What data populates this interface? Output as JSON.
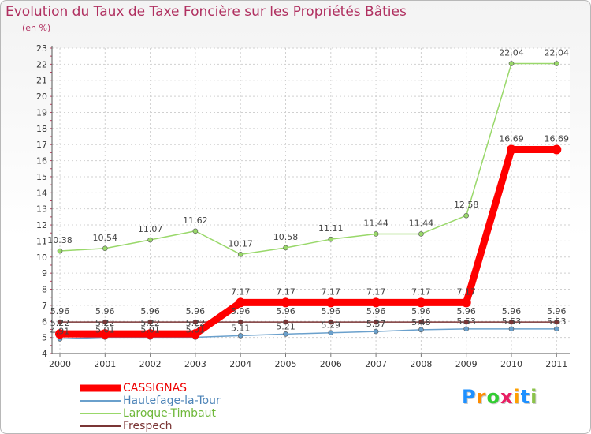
{
  "chart_data": {
    "type": "line",
    "title": "Evolution du Taux de Taxe Foncière sur les Propriétés Bâties",
    "unit_label": "(en %)",
    "categories": [
      "2000",
      "2001",
      "2002",
      "2003",
      "2004",
      "2005",
      "2006",
      "2007",
      "2008",
      "2009",
      "2010",
      "2011"
    ],
    "ylim": [
      4,
      23
    ],
    "yticks": [
      4,
      5,
      6,
      7,
      8,
      9,
      10,
      11,
      12,
      13,
      14,
      15,
      16,
      17,
      18,
      19,
      20,
      21,
      22,
      23
    ],
    "grid": true,
    "series": [
      {
        "name": "CASSIGNAS",
        "color": "#ff0000",
        "values": [
          5.22,
          5.22,
          5.22,
          5.22,
          7.17,
          7.17,
          7.17,
          7.17,
          7.17,
          7.17,
          16.69,
          16.69
        ],
        "labels": [
          "5.22",
          "5.22",
          "5.22",
          "5.22",
          "7.17",
          "7.17",
          "7.17",
          "7.17",
          "7.17",
          "7.17",
          "16.69",
          "16.69"
        ]
      },
      {
        "name": "Hautefage-la-Tour",
        "color": "#6aa0cc",
        "values": [
          4.91,
          5.01,
          5.01,
          5.01,
          5.11,
          5.21,
          5.29,
          5.37,
          5.48,
          5.53,
          5.53,
          5.53
        ],
        "labels": [
          "4.91",
          "5.01",
          "5.01",
          "5.01",
          "5.11",
          "5.21",
          "5.29",
          "5.37",
          "5.48",
          "5.53",
          "5.53",
          "5.53"
        ]
      },
      {
        "name": "Laroque-Timbaut",
        "color": "#99d86a",
        "values": [
          10.38,
          10.54,
          11.07,
          11.62,
          10.17,
          10.58,
          11.11,
          11.44,
          11.44,
          12.58,
          22.04,
          22.04
        ],
        "labels": [
          "10.38",
          "10.54",
          "11.07",
          "11.62",
          "10.17",
          "10.58",
          "11.11",
          "11.44",
          "11.44",
          "12.58",
          "22.04",
          "22.04"
        ]
      },
      {
        "name": "Frespech",
        "color": "#7a3535",
        "values": [
          5.96,
          5.96,
          5.96,
          5.96,
          5.96,
          5.96,
          5.96,
          5.96,
          5.96,
          5.96,
          5.96,
          5.96
        ],
        "labels": [
          "5.96",
          "5.96",
          "5.96",
          "5.96",
          "5.96",
          "5.96",
          "5.96",
          "5.96",
          "5.96",
          "5.96",
          "5.96",
          "5.96"
        ]
      }
    ],
    "legend_position": "bottom-left"
  },
  "logo": {
    "letters": [
      "P",
      "r",
      "o",
      "x",
      "i",
      "t",
      "i"
    ],
    "colors": [
      "#1e90ff",
      "#ff8c00",
      "#32cd32",
      "#e91e63",
      "#ffa000",
      "#1e90ff",
      "#8bc34a"
    ]
  }
}
